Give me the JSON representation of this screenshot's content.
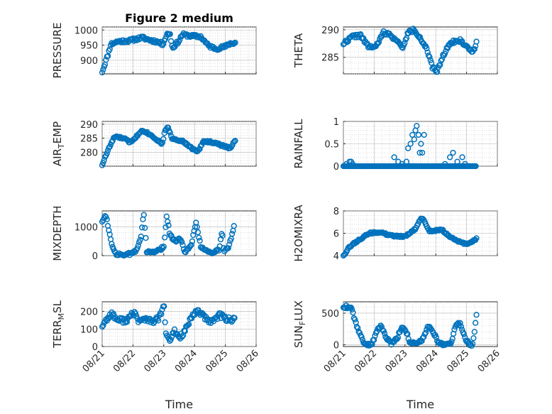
{
  "figure": {
    "title": "Figure 2 medium",
    "xlabel": "Time",
    "x_tick_labels": [
      "08/21",
      "08/22",
      "08/23",
      "08/24",
      "08/25",
      "08/26"
    ],
    "marker_color": "#0072BD"
  },
  "chart_data": [
    {
      "type": "scatter",
      "name": "pressure",
      "title": "Figure 2 medium",
      "ylabel": "PRESSURE",
      "ylim": [
        855,
        1010
      ],
      "yticks": [
        900,
        950,
        1000
      ],
      "xlim": [
        0,
        5
      ],
      "grid": true,
      "marker": "circle",
      "knots": [
        [
          0,
          862
        ],
        [
          0.2,
          922
        ],
        [
          0.28,
          953
        ],
        [
          0.5,
          962
        ],
        [
          0.9,
          965
        ],
        [
          1.3,
          975
        ],
        [
          1.5,
          968
        ],
        [
          1.8,
          961
        ],
        [
          1.96,
          953
        ],
        [
          2.02,
          965
        ],
        [
          2.1,
          985
        ],
        [
          2.2,
          990
        ],
        [
          2.28,
          940
        ],
        [
          2.5,
          965
        ],
        [
          2.6,
          985
        ],
        [
          2.9,
          980
        ],
        [
          3.2,
          978
        ],
        [
          3.45,
          948
        ],
        [
          3.7,
          938
        ],
        [
          4.0,
          945
        ],
        [
          4.15,
          955
        ],
        [
          4.32,
          958
        ]
      ],
      "count": 140,
      "noise": 5,
      "seed": 11
    },
    {
      "type": "scatter",
      "name": "theta",
      "ylabel": "THETA",
      "ylim": [
        282,
        290.5
      ],
      "yticks": [
        285,
        290
      ],
      "xlim": [
        0,
        5
      ],
      "grid": true,
      "marker": "circle",
      "knots": [
        [
          0,
          287.5
        ],
        [
          0.3,
          288.8
        ],
        [
          0.55,
          289
        ],
        [
          0.8,
          287
        ],
        [
          1.05,
          286.8
        ],
        [
          1.3,
          289.5
        ],
        [
          1.55,
          289
        ],
        [
          1.8,
          287.5
        ],
        [
          1.95,
          286.8
        ],
        [
          2.1,
          289.5
        ],
        [
          2.3,
          290
        ],
        [
          2.5,
          288.5
        ],
        [
          2.7,
          286.5
        ],
        [
          2.9,
          283
        ],
        [
          3.05,
          282.5
        ],
        [
          3.25,
          285.5
        ],
        [
          3.5,
          287.8
        ],
        [
          3.8,
          288
        ],
        [
          4.1,
          286.5
        ],
        [
          4.2,
          285.8
        ],
        [
          4.32,
          287.8
        ]
      ],
      "count": 140,
      "noise": 0.3,
      "seed": 22
    },
    {
      "type": "scatter",
      "name": "air_temp",
      "ylabel": "AIR_TEMP",
      "ylim": [
        275,
        291
      ],
      "yticks": [
        280,
        285,
        290
      ],
      "xlim": [
        0,
        5
      ],
      "grid": true,
      "marker": "circle",
      "knots": [
        [
          0,
          275.5
        ],
        [
          0.2,
          281
        ],
        [
          0.4,
          285.5
        ],
        [
          0.7,
          285
        ],
        [
          0.9,
          283.5
        ],
        [
          1.15,
          286
        ],
        [
          1.3,
          288
        ],
        [
          1.6,
          286
        ],
        [
          1.95,
          283
        ],
        [
          2.05,
          288
        ],
        [
          2.15,
          289
        ],
        [
          2.25,
          285
        ],
        [
          2.6,
          284
        ],
        [
          2.9,
          281.5
        ],
        [
          3.1,
          280
        ],
        [
          3.3,
          284
        ],
        [
          3.6,
          283.5
        ],
        [
          4.0,
          282
        ],
        [
          4.15,
          281.5
        ],
        [
          4.32,
          284
        ]
      ],
      "count": 140,
      "noise": 0.35,
      "seed": 33
    },
    {
      "type": "scatter",
      "name": "rainfall",
      "ylabel": "RAINFALL",
      "ylim": [
        0,
        1
      ],
      "yticks": [
        0,
        0.5,
        1
      ],
      "xlim": [
        0,
        5
      ],
      "grid": true,
      "marker": "circle",
      "knots": [],
      "extra_points": [
        [
          0.1,
          0.05
        ],
        [
          0.2,
          0.1
        ],
        [
          0.25,
          0.1
        ],
        [
          0.3,
          0.05
        ],
        [
          1.65,
          0.2
        ],
        [
          1.78,
          0.1
        ],
        [
          1.9,
          0.05
        ],
        [
          2.05,
          0.1
        ],
        [
          2.1,
          0.4
        ],
        [
          2.18,
          0.5
        ],
        [
          2.24,
          0.7
        ],
        [
          2.3,
          0.6
        ],
        [
          2.34,
          0.8
        ],
        [
          2.38,
          0.9
        ],
        [
          2.44,
          0.7
        ],
        [
          2.48,
          0.3
        ],
        [
          2.52,
          0.5
        ],
        [
          2.56,
          0.3
        ],
        [
          2.62,
          0.7
        ],
        [
          3.3,
          0.05
        ],
        [
          3.46,
          0.2
        ],
        [
          3.56,
          0.3
        ],
        [
          3.7,
          0.1
        ],
        [
          3.86,
          0.2
        ],
        [
          3.95,
          0.05
        ]
      ],
      "zero_ranges": [
        [
          0,
          4.3
        ]
      ],
      "count": 140,
      "noise": 0,
      "seed": 44
    },
    {
      "type": "scatter",
      "name": "mixdepth",
      "ylabel": "MIXDEPTH",
      "ylim": [
        0,
        1550
      ],
      "yticks": [
        0,
        1000
      ],
      "xlim": [
        0,
        5
      ],
      "grid": true,
      "marker": "circle",
      "knots": [
        [
          0,
          1200
        ],
        [
          0.12,
          1400
        ],
        [
          0.22,
          900
        ],
        [
          0.3,
          400
        ],
        [
          0.45,
          60
        ],
        [
          0.8,
          20
        ],
        [
          1.1,
          150
        ],
        [
          1.25,
          600
        ],
        [
          1.35,
          1500
        ],
        [
          1.45,
          100
        ],
        [
          1.8,
          150
        ],
        [
          2.0,
          300
        ],
        [
          2.1,
          1400
        ],
        [
          2.2,
          700
        ],
        [
          2.4,
          500
        ],
        [
          2.55,
          600
        ],
        [
          2.7,
          100
        ],
        [
          2.9,
          400
        ],
        [
          3.05,
          1200
        ],
        [
          3.2,
          300
        ],
        [
          3.5,
          100
        ],
        [
          3.8,
          200
        ],
        [
          3.9,
          900
        ],
        [
          3.95,
          150
        ],
        [
          4.1,
          250
        ],
        [
          4.28,
          1000
        ]
      ],
      "count": 140,
      "noise": 50,
      "seed": 55
    },
    {
      "type": "scatter",
      "name": "h2omixra",
      "ylabel": "H2OMIXRA",
      "ylim": [
        4,
        8
      ],
      "yticks": [
        4,
        6,
        8
      ],
      "xlim": [
        0,
        5
      ],
      "grid": true,
      "marker": "circle",
      "knots": [
        [
          0,
          4
        ],
        [
          0.2,
          4.8
        ],
        [
          0.5,
          5.4
        ],
        [
          0.85,
          6
        ],
        [
          1.2,
          6.1
        ],
        [
          1.5,
          5.8
        ],
        [
          2.0,
          5.7
        ],
        [
          2.35,
          6.4
        ],
        [
          2.5,
          7.3
        ],
        [
          2.6,
          7.2
        ],
        [
          2.8,
          6.2
        ],
        [
          3.2,
          6.3
        ],
        [
          3.5,
          5.6
        ],
        [
          3.8,
          5.2
        ],
        [
          4.0,
          5.0
        ],
        [
          4.32,
          5.5
        ]
      ],
      "count": 140,
      "noise": 0.08,
      "seed": 66
    },
    {
      "type": "scatter",
      "name": "terr_msl",
      "ylabel": "TERR_MSL",
      "ylim": [
        0,
        255
      ],
      "yticks": [
        0,
        100,
        200
      ],
      "xlim": [
        0,
        5
      ],
      "grid": true,
      "marker": "circle",
      "knots": [
        [
          0,
          120
        ],
        [
          0.3,
          190
        ],
        [
          0.5,
          150
        ],
        [
          0.8,
          150
        ],
        [
          1.05,
          195
        ],
        [
          1.2,
          140
        ],
        [
          1.4,
          160
        ],
        [
          1.6,
          140
        ],
        [
          1.85,
          160
        ],
        [
          2.0,
          240
        ],
        [
          2.08,
          60
        ],
        [
          2.2,
          30
        ],
        [
          2.35,
          90
        ],
        [
          2.5,
          50
        ],
        [
          2.65,
          80
        ],
        [
          2.9,
          160
        ],
        [
          3.1,
          210
        ],
        [
          3.25,
          180
        ],
        [
          3.45,
          140
        ],
        [
          3.6,
          150
        ],
        [
          3.8,
          180
        ],
        [
          4.0,
          160
        ],
        [
          4.3,
          150
        ]
      ],
      "count": 140,
      "noise": 15,
      "seed": 77
    },
    {
      "type": "scatter",
      "name": "sun_flux",
      "ylabel": "SUN_FLUX",
      "ylim": [
        -30,
        680
      ],
      "yticks": [
        0,
        500
      ],
      "xlim": [
        0,
        5
      ],
      "grid": true,
      "marker": "circle",
      "knots": [
        [
          0,
          600
        ],
        [
          0.25,
          600
        ],
        [
          0.4,
          350
        ],
        [
          0.55,
          150
        ],
        [
          0.7,
          10
        ],
        [
          0.9,
          0
        ],
        [
          1.0,
          100
        ],
        [
          1.2,
          320
        ],
        [
          1.35,
          150
        ],
        [
          1.55,
          20
        ],
        [
          1.75,
          100
        ],
        [
          1.9,
          300
        ],
        [
          2.0,
          260
        ],
        [
          2.15,
          50
        ],
        [
          2.35,
          5
        ],
        [
          2.55,
          60
        ],
        [
          2.75,
          300
        ],
        [
          2.9,
          200
        ],
        [
          3.1,
          30
        ],
        [
          3.3,
          0
        ],
        [
          3.5,
          20
        ],
        [
          3.65,
          300
        ],
        [
          3.8,
          340
        ],
        [
          3.95,
          100
        ],
        [
          4.1,
          10
        ],
        [
          4.2,
          0
        ],
        [
          4.32,
          450
        ]
      ],
      "count": 140,
      "noise": 25,
      "seed": 88
    }
  ]
}
